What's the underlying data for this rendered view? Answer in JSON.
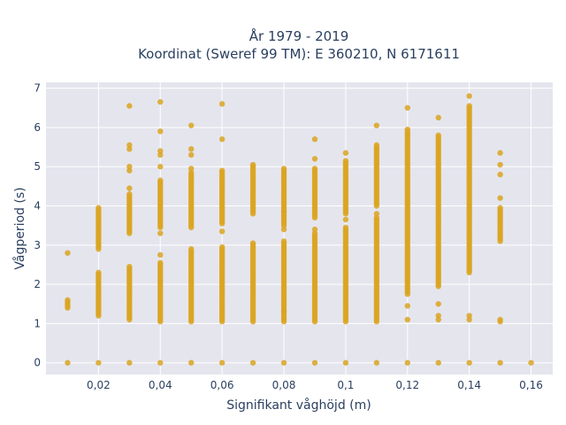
{
  "chart_data": {
    "type": "scatter",
    "title": "År 1979 - 2019",
    "subtitle": "Koordinat (Sweref 99 TM): E 360210, N 6171611",
    "xlabel": "Signifikant våghöjd (m)",
    "ylabel": "Vågperiod (s)",
    "xlim": [
      0.003,
      0.167
    ],
    "ylim": [
      -0.3,
      7.15
    ],
    "x_ticks": [
      0.02,
      0.04,
      0.06,
      0.08,
      0.1,
      0.12,
      0.14,
      0.16
    ],
    "x_tick_labels": [
      "0,02",
      "0,04",
      "0,06",
      "0,08",
      "0,1",
      "0,12",
      "0,14",
      "0,16"
    ],
    "y_ticks": [
      0,
      1,
      2,
      3,
      4,
      5,
      6,
      7
    ],
    "y_tick_labels": [
      "0",
      "1",
      "2",
      "3",
      "4",
      "5",
      "6",
      "7"
    ],
    "grid": true,
    "legend": "none",
    "marker_color": "#DAA520",
    "plot_bg": "#E5E5EE",
    "series": [
      {
        "columns": [
          {
            "x": 0.01,
            "ranges": [
              [
                1.4,
                1.62
              ]
            ],
            "points": [
              0,
              2.8
            ]
          },
          {
            "x": 0.02,
            "ranges": [
              [
                1.2,
                2.3
              ],
              [
                2.9,
                3.95
              ]
            ],
            "points": [
              0
            ]
          },
          {
            "x": 0.03,
            "ranges": [
              [
                1.1,
                2.45
              ],
              [
                3.3,
                4.3
              ]
            ],
            "points": [
              0,
              4.45,
              4.9,
              5.0,
              5.45,
              5.55,
              6.55
            ]
          },
          {
            "x": 0.04,
            "ranges": [
              [
                1.05,
                2.55
              ],
              [
                3.45,
                4.65
              ]
            ],
            "points": [
              0,
              2.75,
              3.3,
              5.0,
              5.3,
              5.4,
              5.9,
              6.65
            ]
          },
          {
            "x": 0.05,
            "ranges": [
              [
                1.05,
                2.9
              ],
              [
                3.45,
                4.85
              ]
            ],
            "points": [
              0,
              4.95,
              5.3,
              5.45,
              6.05
            ]
          },
          {
            "x": 0.06,
            "ranges": [
              [
                1.05,
                2.95
              ],
              [
                3.55,
                4.9
              ]
            ],
            "points": [
              0,
              3.35,
              5.7,
              6.6
            ]
          },
          {
            "x": 0.07,
            "ranges": [
              [
                1.05,
                3.05
              ],
              [
                3.85,
                5.05
              ]
            ],
            "points": [
              0,
              3.8
            ]
          },
          {
            "x": 0.08,
            "ranges": [
              [
                1.05,
                3.1
              ],
              [
                3.5,
                4.95
              ]
            ],
            "points": [
              0,
              1.3,
              3.4,
              3.85
            ]
          },
          {
            "x": 0.09,
            "ranges": [
              [
                1.05,
                3.3
              ],
              [
                3.75,
                4.95
              ]
            ],
            "points": [
              0,
              3.4,
              3.7,
              5.2,
              5.7
            ]
          },
          {
            "x": 0.1,
            "ranges": [
              [
                1.05,
                3.45
              ],
              [
                3.8,
                5.15
              ]
            ],
            "points": [
              0,
              3.65,
              5.35
            ]
          },
          {
            "x": 0.11,
            "ranges": [
              [
                1.05,
                3.7
              ],
              [
                4.0,
                5.55
              ]
            ],
            "points": [
              0,
              3.8,
              6.05
            ]
          },
          {
            "x": 0.12,
            "ranges": [
              [
                1.75,
                5.95
              ]
            ],
            "points": [
              0,
              1.1,
              1.45,
              6.5
            ]
          },
          {
            "x": 0.13,
            "ranges": [
              [
                1.95,
                5.8
              ]
            ],
            "points": [
              0,
              1.1,
              1.2,
              1.5,
              6.25
            ]
          },
          {
            "x": 0.14,
            "ranges": [
              [
                2.3,
                6.55
              ]
            ],
            "points": [
              0,
              1.1,
              1.2,
              6.8
            ]
          },
          {
            "x": 0.15,
            "ranges": [
              [
                3.1,
                3.95
              ]
            ],
            "points": [
              0,
              1.05,
              1.1,
              4.2,
              4.8,
              5.05,
              5.35
            ]
          },
          {
            "x": 0.16,
            "ranges": [],
            "points": [
              0
            ]
          }
        ]
      }
    ]
  }
}
